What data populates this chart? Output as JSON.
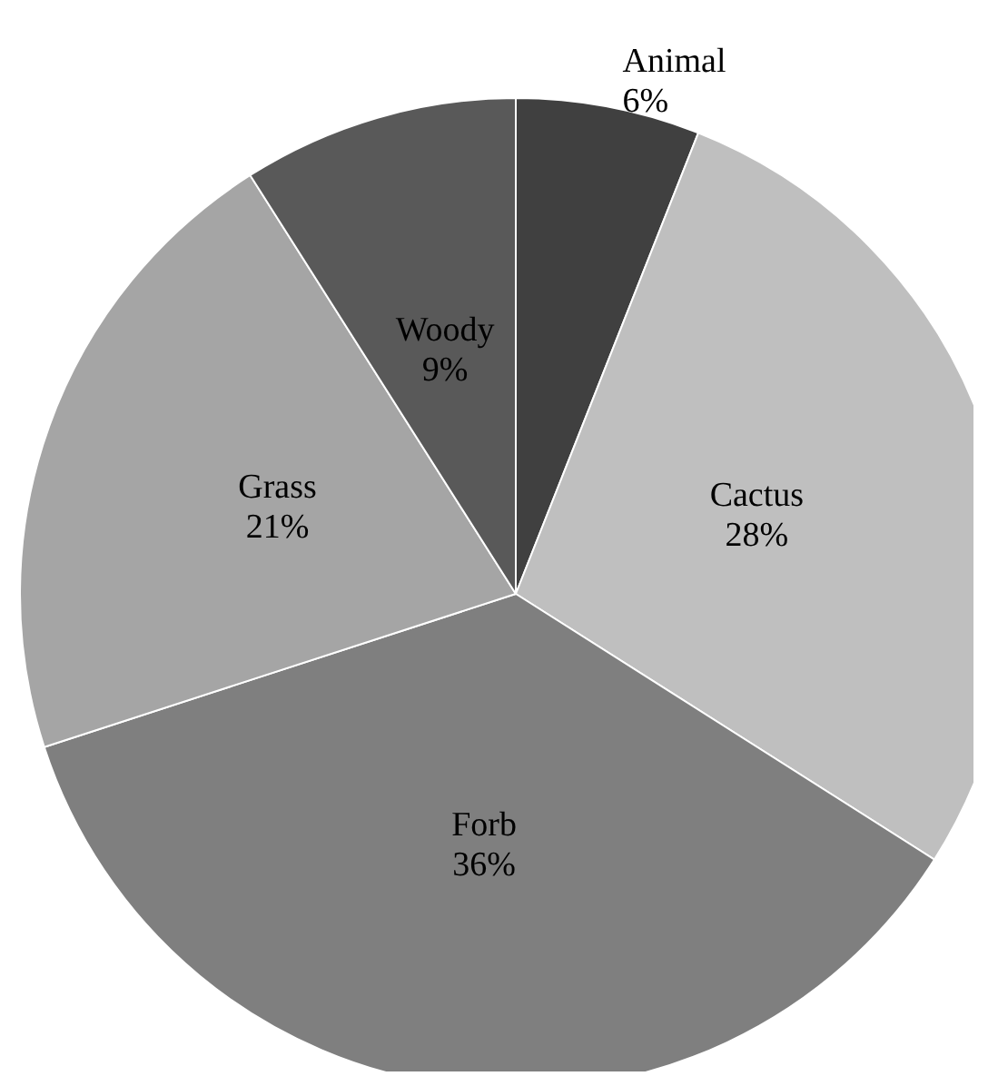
{
  "chart_data": {
    "type": "pie",
    "categories": [
      "Animal",
      "Cactus",
      "Forb",
      "Grass",
      "Woody"
    ],
    "values": [
      6,
      28,
      36,
      21,
      9
    ],
    "colors": [
      "#404040",
      "#bfbfbf",
      "#7f7f7f",
      "#a5a5a5",
      "#595959"
    ],
    "value_labels": [
      "6%",
      "28%",
      "36%",
      "21%",
      "9%"
    ],
    "legend": false
  }
}
